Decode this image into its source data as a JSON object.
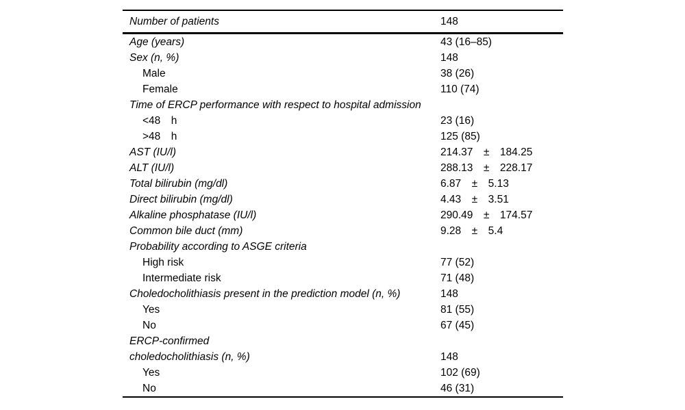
{
  "page": {
    "background": "#ffffff",
    "text_color": "#000000",
    "rule_color": "#000000"
  },
  "table": {
    "header": {
      "label": "Number of patients",
      "value": "148"
    },
    "rows": [
      {
        "label": "Age (years)",
        "value": "43 (16–85)",
        "style": "category"
      },
      {
        "label": "Sex (n, %)",
        "value": "148",
        "style": "category"
      },
      {
        "label": "Male",
        "value": "38 (26)",
        "style": "sub"
      },
      {
        "label": "Female",
        "value": "110 (74)",
        "style": "sub"
      },
      {
        "label": "Time of ERCP performance with respect to hospital admission",
        "value": "",
        "style": "category"
      },
      {
        "label": "<48 h",
        "value": "23 (16)",
        "style": "sub"
      },
      {
        "label": ">48 h",
        "value": "125 (85)",
        "style": "sub"
      },
      {
        "label": "AST (IU/l)",
        "value": "214.37 ± 184.25",
        "style": "category"
      },
      {
        "label": "ALT (IU/l)",
        "value": "288.13 ± 228.17",
        "style": "category"
      },
      {
        "label": "Total bilirubin (mg/dl)",
        "value": "6.87 ± 5.13",
        "style": "category"
      },
      {
        "label": "Direct bilirubin (mg/dl)",
        "value": "4.43 ± 3.51",
        "style": "category"
      },
      {
        "label": "Alkaline phosphatase (IU/l)",
        "value": "290.49 ± 174.57",
        "style": "category"
      },
      {
        "label": "Common bile duct (mm)",
        "value": "9.28 ± 5.4",
        "style": "category"
      },
      {
        "label": "Probability according to ASGE criteria",
        "value": "",
        "style": "category"
      },
      {
        "label": "High risk",
        "value": "77 (52)",
        "style": "sub"
      },
      {
        "label": "Intermediate risk",
        "value": "71 (48)",
        "style": "sub"
      },
      {
        "label": "Choledocholithiasis present in the prediction model (n, %)",
        "value": "148",
        "style": "category"
      },
      {
        "label": "Yes",
        "value": "81 (55)",
        "style": "sub"
      },
      {
        "label": "No",
        "value": "67 (45)",
        "style": "sub"
      },
      {
        "label": "ERCP-confirmed",
        "value": "",
        "style": "category"
      },
      {
        "label": "choledocholithiasis (n, %)",
        "value": "148",
        "style": "category"
      },
      {
        "label": "Yes",
        "value": "102 (69)",
        "style": "sub"
      },
      {
        "label": "No",
        "value": "46 (31)",
        "style": "sub"
      }
    ]
  }
}
